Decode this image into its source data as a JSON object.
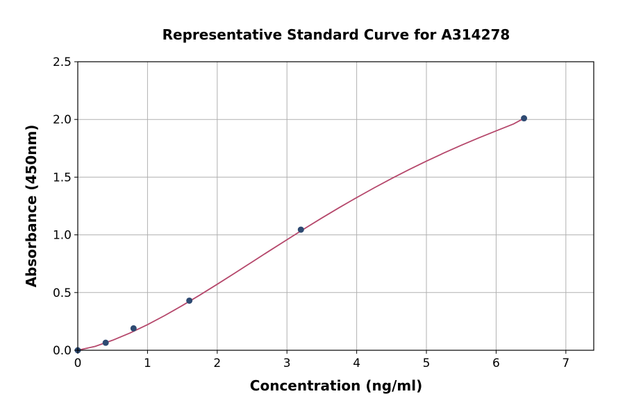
{
  "chart_data": {
    "type": "scatter",
    "title": "Representative Standard Curve for A314278",
    "xlabel": "Concentration (ng/ml)",
    "ylabel": "Absorbance (450nm)",
    "xlim": [
      0,
      7.4
    ],
    "ylim": [
      0,
      2.5
    ],
    "xticks": [
      0,
      1,
      2,
      3,
      4,
      5,
      6,
      7
    ],
    "yticks": [
      0.0,
      0.5,
      1.0,
      1.5,
      2.0,
      2.5
    ],
    "ytick_labels": [
      "0.0",
      "0.5",
      "1.0",
      "1.5",
      "2.0",
      "2.5"
    ],
    "grid": true,
    "series": [
      {
        "kind": "points",
        "color": "#2e4a72",
        "x": [
          0,
          0.4,
          0.8,
          1.6,
          3.2,
          6.4
        ],
        "y": [
          0.0,
          0.065,
          0.19,
          0.43,
          1.045,
          2.01
        ]
      },
      {
        "kind": "fit-curve",
        "color": "#b5476b",
        "x": [
          0,
          0.25,
          0.5,
          0.75,
          1.0,
          1.25,
          1.5,
          1.75,
          2.0,
          2.25,
          2.5,
          2.75,
          3.0,
          3.25,
          3.5,
          3.75,
          4.0,
          4.25,
          4.5,
          4.75,
          5.0,
          5.25,
          5.5,
          5.75,
          6.0,
          6.25,
          6.4
        ],
        "y": [
          0.0,
          0.034,
          0.087,
          0.15,
          0.222,
          0.302,
          0.388,
          0.478,
          0.572,
          0.668,
          0.765,
          0.862,
          0.958,
          1.053,
          1.146,
          1.236,
          1.323,
          1.407,
          1.488,
          1.565,
          1.639,
          1.709,
          1.776,
          1.84,
          1.901,
          1.961,
          2.01
        ]
      }
    ]
  }
}
